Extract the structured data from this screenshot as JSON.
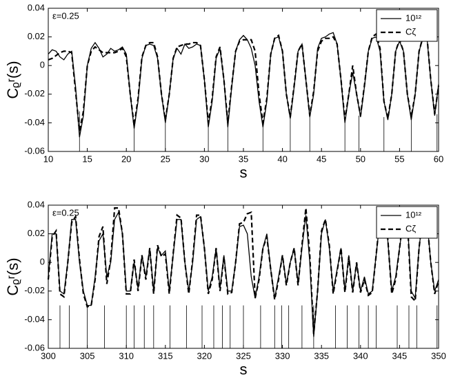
{
  "chart_data": [
    {
      "type": "line",
      "annotation": "ε=0.25",
      "xlabel": "s",
      "ylabel": "Cᵨʳ(s)",
      "xlim": [
        10,
        60
      ],
      "xticks": [
        10,
        15,
        20,
        25,
        30,
        35,
        40,
        45,
        50,
        55,
        60
      ],
      "ylim": [
        -0.06,
        0.04
      ],
      "yticks": [
        -0.06,
        -0.04,
        -0.02,
        0,
        0.02,
        0.04
      ],
      "legend": "upper right",
      "x": [
        10,
        10.5,
        11,
        11.5,
        12,
        12.5,
        13,
        13.5,
        14,
        14.5,
        15,
        15.5,
        16,
        16.5,
        17,
        17.5,
        18,
        18.5,
        19,
        19.5,
        20,
        20.5,
        21,
        21.5,
        22,
        22.5,
        23,
        23.5,
        24,
        24.5,
        25,
        25.5,
        26,
        26.5,
        27,
        27.5,
        28,
        28.5,
        29,
        29.5,
        30,
        30.5,
        31,
        31.5,
        32,
        32.5,
        33,
        33.5,
        34,
        34.5,
        35,
        35.5,
        36,
        36.5,
        37,
        37.5,
        38,
        38.5,
        39,
        39.5,
        40,
        40.5,
        41,
        41.5,
        42,
        42.5,
        43,
        43.5,
        44,
        44.5,
        45,
        45.5,
        46,
        46.5,
        47,
        47.5,
        48,
        48.5,
        49,
        49.5,
        50,
        50.5,
        51,
        51.5,
        52,
        52.5,
        53,
        53.5,
        54,
        54.5,
        55,
        55.5,
        56,
        56.5,
        57,
        57.5,
        58,
        58.5,
        59,
        59.5,
        60
      ],
      "series": [
        {
          "name": "10¹²",
          "color": "#000000",
          "dash": false,
          "values": [
            0.008,
            0.011,
            0.01,
            0.006,
            0.004,
            0.008,
            0.01,
            -0.015,
            -0.05,
            -0.035,
            0,
            0.012,
            0.016,
            0.012,
            0.006,
            0.008,
            0.012,
            0.01,
            0.011,
            0.013,
            0.008,
            -0.02,
            -0.044,
            -0.025,
            0.005,
            0.014,
            0.015,
            0.014,
            0.005,
            -0.02,
            -0.04,
            -0.02,
            0.005,
            0.012,
            0.008,
            0.015,
            0.012,
            0.013,
            0.015,
            0.014,
            -0.01,
            -0.043,
            -0.025,
            0.005,
            0.012,
            -0.01,
            -0.043,
            -0.015,
            0.01,
            0.018,
            0.021,
            0.018,
            0.012,
            0,
            -0.025,
            -0.043,
            -0.025,
            0.008,
            0.019,
            0.02,
            0.01,
            -0.02,
            -0.037,
            -0.015,
            0.01,
            0.015,
            -0.01,
            -0.036,
            -0.02,
            0.012,
            0.019,
            0.02,
            0.022,
            0.023,
            0.015,
            -0.01,
            -0.04,
            -0.02,
            -0.005,
            -0.02,
            -0.036,
            -0.015,
            0.01,
            0.019,
            0.02,
            0.01,
            -0.025,
            -0.038,
            -0.02,
            0.01,
            0.017,
            0.01,
            -0.02,
            -0.038,
            -0.02,
            0.01,
            0.019,
            0.02,
            -0.01,
            -0.035,
            -0.013
          ]
        },
        {
          "name": "Cζ",
          "color": "#000000",
          "dash": true,
          "values": [
            0.004,
            0.005,
            0.007,
            0.009,
            0.01,
            0.01,
            0.009,
            -0.018,
            -0.046,
            -0.032,
            0,
            0.01,
            0.013,
            0.011,
            0.009,
            0.009,
            0.009,
            0.009,
            0.01,
            0.012,
            0.006,
            -0.02,
            -0.042,
            -0.023,
            0.006,
            0.014,
            0.016,
            0.016,
            0.006,
            -0.02,
            -0.038,
            -0.02,
            0.005,
            0.013,
            0.014,
            0.015,
            0.015,
            0.016,
            0.016,
            0.014,
            -0.01,
            -0.04,
            -0.023,
            0.006,
            0.013,
            -0.01,
            -0.04,
            -0.014,
            0.01,
            0.017,
            0.018,
            0.018,
            0.018,
            0.01,
            -0.02,
            -0.04,
            -0.023,
            0.008,
            0.019,
            0.021,
            0.01,
            -0.02,
            -0.036,
            -0.014,
            0.01,
            0.015,
            -0.01,
            -0.035,
            -0.018,
            0.01,
            0.017,
            0.019,
            0.019,
            0.02,
            0.015,
            -0.01,
            -0.038,
            -0.02,
            0,
            -0.02,
            -0.035,
            -0.014,
            0.01,
            0.02,
            0.022,
            0.012,
            -0.025,
            -0.037,
            -0.02,
            0.01,
            0.018,
            0.01,
            -0.02,
            -0.036,
            -0.02,
            0.01,
            0.02,
            0.021,
            -0.01,
            -0.034,
            -0.014
          ]
        }
      ],
      "vlines": {
        "x": [
          14,
          21,
          25,
          30.5,
          33,
          37.5,
          41,
          43.5,
          48,
          49.8,
          53,
          56.5,
          59.8
        ],
        "y": [
          -0.032,
          -0.04,
          -0.038,
          -0.04,
          -0.04,
          -0.04,
          -0.036,
          -0.035,
          -0.037,
          -0.035,
          -0.036,
          -0.036,
          -0.034
        ]
      }
    },
    {
      "type": "line",
      "annotation": "ε=0.25",
      "xlabel": "s",
      "ylabel": "Cᵨʳ(s)",
      "xlim": [
        300,
        350
      ],
      "xticks": [
        300,
        305,
        310,
        315,
        320,
        325,
        330,
        335,
        340,
        345,
        350
      ],
      "ylim": [
        -0.06,
        0.04
      ],
      "yticks": [
        -0.06,
        -0.04,
        -0.02,
        0,
        0.02,
        0.04
      ],
      "legend": "upper right",
      "x": [
        300,
        300.5,
        301,
        301.5,
        302,
        302.5,
        303,
        303.5,
        304,
        304.5,
        305,
        305.5,
        306,
        306.5,
        307,
        307.5,
        308,
        308.5,
        309,
        309.5,
        310,
        310.5,
        311,
        311.5,
        312,
        312.5,
        313,
        313.5,
        314,
        314.5,
        315,
        315.5,
        316,
        316.5,
        317,
        317.5,
        318,
        318.5,
        319,
        319.5,
        320,
        320.5,
        321,
        321.5,
        322,
        322.5,
        323,
        323.5,
        324,
        324.5,
        325,
        325.5,
        326,
        326.5,
        327,
        327.5,
        328,
        328.5,
        329,
        329.5,
        330,
        330.5,
        331,
        331.5,
        332,
        332.5,
        333,
        333.5,
        334,
        334.5,
        335,
        335.5,
        336,
        336.5,
        337,
        337.5,
        338,
        338.5,
        339,
        339.5,
        340,
        340.5,
        341,
        341.5,
        342,
        342.5,
        343,
        343.5,
        344,
        344.5,
        345,
        345.5,
        346,
        346.5,
        347,
        347.5,
        348,
        348.5,
        349,
        349.5,
        350
      ],
      "series": [
        {
          "name": "10¹²",
          "color": "#000000",
          "dash": false,
          "values": [
            -0.01,
            0.02,
            0.02,
            -0.02,
            -0.022,
            0,
            0.03,
            0.03,
            0,
            -0.02,
            -0.03,
            -0.03,
            -0.01,
            0.015,
            0.02,
            -0.01,
            0,
            0.03,
            0.035,
            0.02,
            -0.02,
            -0.02,
            0,
            -0.018,
            0.005,
            -0.01,
            0.01,
            -0.02,
            0.01,
            0.005,
            0.008,
            -0.02,
            0.005,
            0.03,
            0.03,
            0,
            -0.02,
            0,
            0.03,
            0.032,
            0.01,
            -0.02,
            -0.01,
            0.01,
            -0.018,
            0.005,
            -0.02,
            -0.02,
            0,
            0.025,
            0.026,
            0.02,
            -0.01,
            -0.025,
            -0.01,
            0.01,
            0.02,
            -0.005,
            -0.025,
            -0.01,
            0.005,
            -0.015,
            0,
            0.01,
            -0.015,
            0.01,
            0.033,
            0,
            -0.052,
            -0.02,
            0.02,
            0.03,
            0.01,
            -0.02,
            -0.005,
            0.01,
            -0.02,
            0.005,
            -0.02,
            0,
            -0.02,
            -0.01,
            -0.022,
            -0.02,
            0.005,
            0.03,
            0.035,
            0.015,
            -0.02,
            -0.01,
            0.01,
            0.03,
            0.03,
            -0.02,
            -0.025,
            0.01,
            0.033,
            0.03,
            0,
            -0.02,
            -0.012
          ]
        },
        {
          "name": "Cζ",
          "color": "#000000",
          "dash": true,
          "values": [
            -0.012,
            0.018,
            0.022,
            -0.022,
            -0.024,
            0,
            0.028,
            0.032,
            0.002,
            -0.022,
            -0.031,
            -0.03,
            -0.012,
            0.018,
            0.025,
            -0.015,
            0.002,
            0.038,
            0.038,
            0.02,
            -0.022,
            -0.022,
            0.002,
            -0.02,
            0.005,
            -0.012,
            0.01,
            -0.022,
            0.012,
            0.004,
            0.006,
            -0.022,
            0.006,
            0.033,
            0.031,
            0,
            -0.022,
            0.002,
            0.033,
            0.033,
            0.01,
            -0.022,
            -0.012,
            0.01,
            -0.02,
            0.004,
            -0.022,
            -0.021,
            0,
            0.027,
            0.028,
            0.034,
            0.035,
            -0.025,
            -0.012,
            0.01,
            0.018,
            -0.005,
            -0.026,
            -0.012,
            0.005,
            -0.016,
            0,
            0.01,
            -0.016,
            0.012,
            0.038,
            0.005,
            -0.05,
            -0.02,
            0.022,
            0.03,
            0.012,
            -0.022,
            -0.006,
            0.01,
            -0.021,
            0.004,
            -0.021,
            0,
            -0.021,
            -0.012,
            -0.023,
            -0.021,
            0.005,
            0.032,
            0.036,
            0.016,
            -0.022,
            -0.012,
            0.01,
            0.032,
            0.03,
            -0.024,
            -0.027,
            0.01,
            0.034,
            0.03,
            0,
            -0.022,
            -0.013
          ]
        }
      ],
      "vlines": {
        "x": [
          301.5,
          302.7,
          305,
          307.2,
          310,
          311,
          312.3,
          313.5,
          315.6,
          317.7,
          319.7,
          321.2,
          322.3,
          323.3,
          325,
          327.2,
          329,
          329.9,
          330.8,
          332.5,
          334,
          336.8,
          338.3,
          339.8,
          341,
          342,
          344.7,
          346.2,
          347.2,
          349.8
        ],
        "y": [
          -0.03,
          -0.03,
          -0.03,
          -0.03,
          -0.03,
          -0.03,
          -0.03,
          -0.03,
          -0.03,
          -0.03,
          -0.03,
          -0.03,
          -0.03,
          -0.03,
          -0.03,
          -0.03,
          -0.03,
          -0.03,
          -0.03,
          -0.03,
          -0.03,
          -0.03,
          -0.03,
          -0.03,
          -0.03,
          -0.03,
          -0.03,
          -0.03,
          -0.03,
          -0.03
        ]
      }
    }
  ]
}
